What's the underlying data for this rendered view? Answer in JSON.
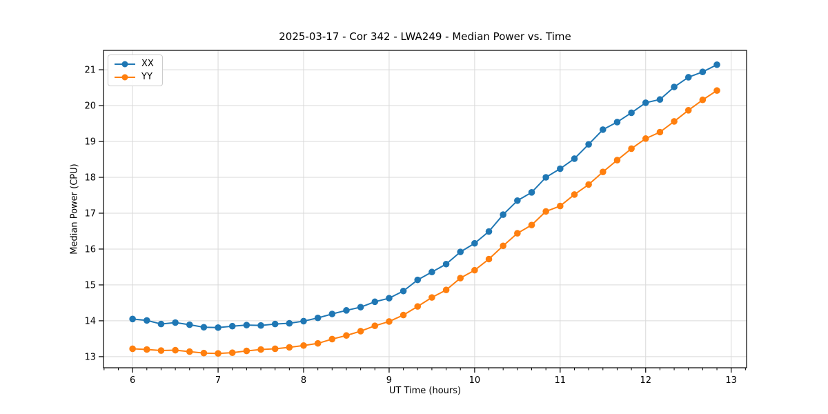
{
  "window": {
    "background": "#ffffff"
  },
  "chart_data": {
    "type": "line",
    "title": "2025-03-17 - Cor 342 - LWA249 - Median Power vs. Time",
    "xlabel": "UT Time (hours)",
    "ylabel": "Median Power (CPU)",
    "legend_position": "upper-left",
    "grid": true,
    "grid_color": "#d9d9d9",
    "spine_color": "#000000",
    "tick_label_color": "#000000",
    "xlim": [
      5.66,
      13.18
    ],
    "ylim": [
      12.69,
      21.54
    ],
    "xticks": [
      6,
      7,
      8,
      9,
      10,
      11,
      12,
      13
    ],
    "yticks": [
      13,
      14,
      15,
      16,
      17,
      18,
      19,
      20,
      21
    ],
    "x_minor_tick_step": 0.166667,
    "x": [
      6.0,
      6.1667,
      6.3333,
      6.5,
      6.6667,
      6.8333,
      7.0,
      7.1667,
      7.3333,
      7.5,
      7.6667,
      7.8333,
      8.0,
      8.1667,
      8.3333,
      8.5,
      8.6667,
      8.8333,
      9.0,
      9.1667,
      9.3333,
      9.5,
      9.6667,
      9.8333,
      10.0,
      10.1667,
      10.3333,
      10.5,
      10.6667,
      10.8333,
      11.0,
      11.1667,
      11.3333,
      11.5,
      11.6667,
      11.8333,
      12.0,
      12.1667,
      12.3333,
      12.5,
      12.6667,
      12.8333
    ],
    "series": [
      {
        "name": "XX",
        "color": "#1f77b4",
        "values": [
          14.05,
          14.01,
          13.91,
          13.95,
          13.89,
          13.82,
          13.81,
          13.85,
          13.88,
          13.87,
          13.91,
          13.93,
          13.99,
          14.08,
          14.19,
          14.29,
          14.38,
          14.53,
          14.63,
          14.83,
          15.14,
          15.36,
          15.58,
          15.92,
          16.16,
          16.49,
          16.96,
          17.35,
          17.58,
          18.0,
          18.24,
          18.52,
          18.92,
          19.33,
          19.54,
          19.8,
          20.08,
          20.17,
          20.52,
          20.79,
          20.94,
          21.14
        ]
      },
      {
        "name": "YY",
        "color": "#ff7f0e",
        "values": [
          13.22,
          13.2,
          13.17,
          13.18,
          13.14,
          13.1,
          13.09,
          13.11,
          13.16,
          13.2,
          13.22,
          13.26,
          13.31,
          13.37,
          13.49,
          13.59,
          13.71,
          13.86,
          13.98,
          14.16,
          14.4,
          14.65,
          14.86,
          15.19,
          15.41,
          15.72,
          16.09,
          16.44,
          16.67,
          17.05,
          17.2,
          17.52,
          17.8,
          18.15,
          18.48,
          18.8,
          19.08,
          19.26,
          19.56,
          19.87,
          20.16,
          20.42
        ]
      }
    ]
  }
}
